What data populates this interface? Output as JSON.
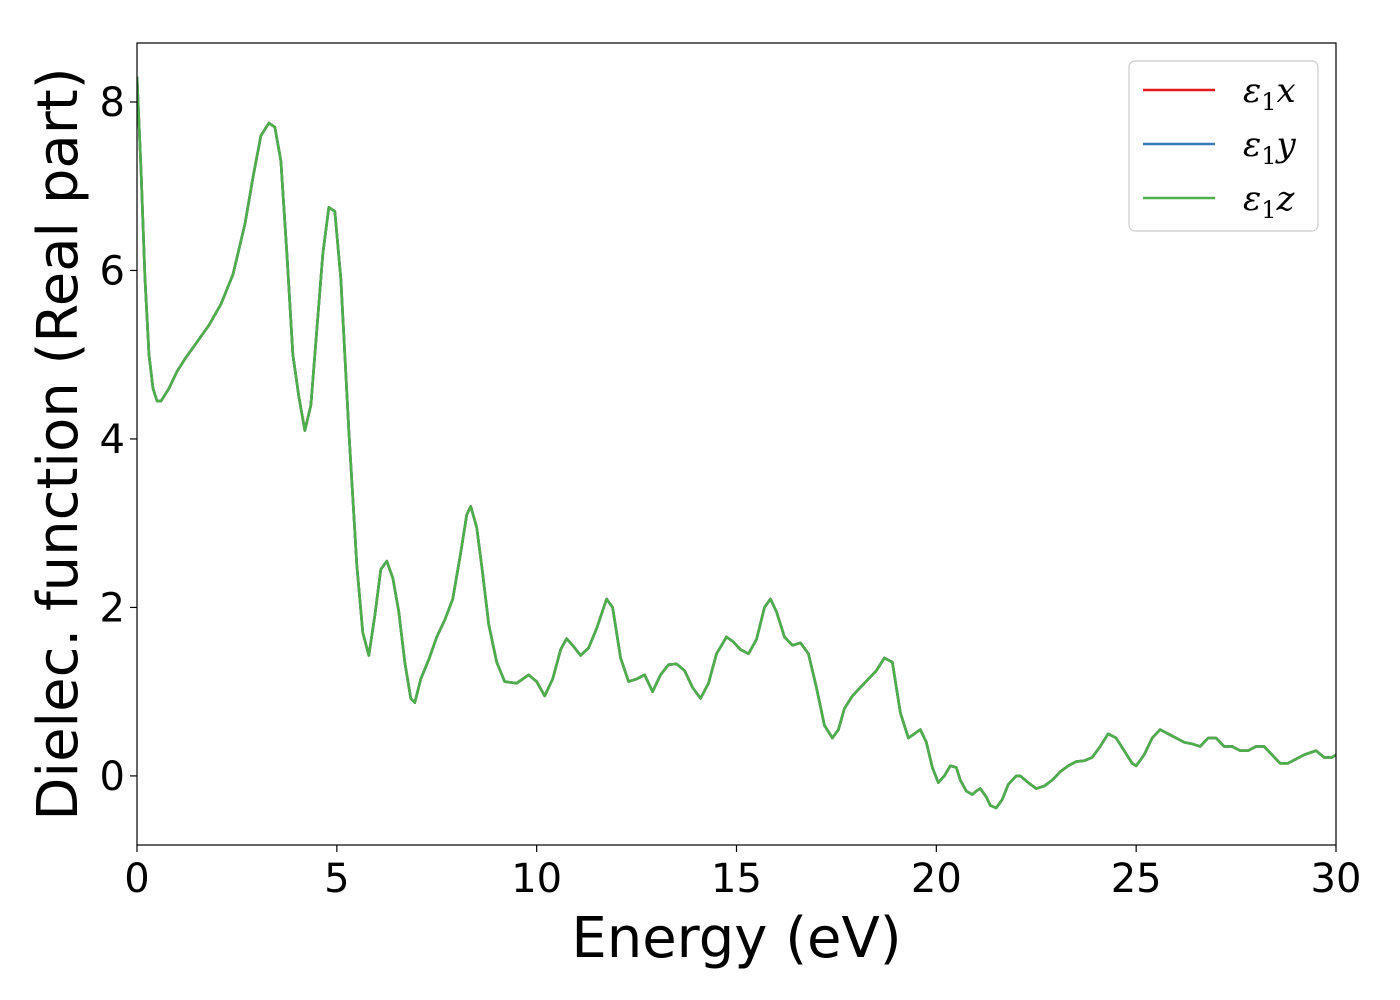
{
  "chart_data": {
    "type": "line",
    "title": "",
    "xlabel": "Energy (eV)",
    "ylabel": "Dielec. function (Real part)",
    "xlim": [
      0,
      30
    ],
    "ylim": [
      -0.82,
      8.7
    ],
    "xticks": [
      0,
      5,
      10,
      15,
      20,
      25,
      30
    ],
    "yticks": [
      0,
      2,
      4,
      6,
      8
    ],
    "legend_position": "top-right",
    "grid": false,
    "series": [
      {
        "name": "ε₁x",
        "legend_base": "ε",
        "legend_sub": "1",
        "legend_var": "x",
        "color": "#e41a1c",
        "x": [
          0,
          0.1,
          0.2,
          0.3,
          0.4,
          0.5,
          0.6,
          0.8,
          1.0,
          1.2,
          1.5,
          1.8,
          2.1,
          2.4,
          2.7,
          2.9,
          3.1,
          3.3,
          3.45,
          3.6,
          3.75,
          3.9,
          4.05,
          4.2,
          4.35,
          4.5,
          4.65,
          4.8,
          4.95,
          5.1,
          5.3,
          5.5,
          5.65,
          5.8,
          5.95,
          6.1,
          6.25,
          6.4,
          6.55,
          6.7,
          6.85,
          6.95,
          7.1,
          7.3,
          7.5,
          7.7,
          7.9,
          8.1,
          8.25,
          8.35,
          8.5,
          8.65,
          8.8,
          9.0,
          9.2,
          9.5,
          9.8,
          10.0,
          10.2,
          10.4,
          10.6,
          10.75,
          10.9,
          11.1,
          11.3,
          11.5,
          11.75,
          11.9,
          12.1,
          12.3,
          12.5,
          12.7,
          12.9,
          13.1,
          13.3,
          13.5,
          13.7,
          13.9,
          14.1,
          14.3,
          14.5,
          14.75,
          14.9,
          15.1,
          15.3,
          15.5,
          15.7,
          15.85,
          16.0,
          16.2,
          16.4,
          16.6,
          16.8,
          17.0,
          17.2,
          17.4,
          17.55,
          17.7,
          17.9,
          18.1,
          18.3,
          18.5,
          18.7,
          18.9,
          19.1,
          19.3,
          19.45,
          19.6,
          19.75,
          19.9,
          20.05,
          20.2,
          20.35,
          20.5,
          20.6,
          20.75,
          20.9,
          21.0,
          21.1,
          21.25,
          21.35,
          21.5,
          21.65,
          21.8,
          22.0,
          22.1,
          22.3,
          22.5,
          22.7,
          22.9,
          23.1,
          23.3,
          23.5,
          23.7,
          23.9,
          24.1,
          24.3,
          24.5,
          24.7,
          24.9,
          25.0,
          25.2,
          25.4,
          25.6,
          25.8,
          26.0,
          26.2,
          26.4,
          26.6,
          26.8,
          27.0,
          27.2,
          27.4,
          27.6,
          27.8,
          28.0,
          28.2,
          28.4,
          28.6,
          28.8,
          29.0,
          29.2,
          29.5,
          29.7,
          29.9,
          30.0
        ],
        "y": [
          8.3,
          7.2,
          5.9,
          5.0,
          4.6,
          4.45,
          4.45,
          4.6,
          4.8,
          4.95,
          5.15,
          5.35,
          5.6,
          5.95,
          6.55,
          7.1,
          7.6,
          7.75,
          7.7,
          7.3,
          6.2,
          5.0,
          4.5,
          4.1,
          4.4,
          5.3,
          6.2,
          6.75,
          6.7,
          5.9,
          4.1,
          2.5,
          1.7,
          1.43,
          1.9,
          2.45,
          2.55,
          2.35,
          1.95,
          1.35,
          0.92,
          0.87,
          1.15,
          1.38,
          1.65,
          1.85,
          2.1,
          2.65,
          3.1,
          3.2,
          2.95,
          2.4,
          1.8,
          1.35,
          1.12,
          1.1,
          1.2,
          1.12,
          0.95,
          1.15,
          1.5,
          1.63,
          1.55,
          1.43,
          1.52,
          1.75,
          2.1,
          2.0,
          1.4,
          1.12,
          1.15,
          1.2,
          1.0,
          1.2,
          1.32,
          1.33,
          1.25,
          1.05,
          0.92,
          1.1,
          1.45,
          1.65,
          1.6,
          1.5,
          1.45,
          1.62,
          2.0,
          2.1,
          1.95,
          1.65,
          1.55,
          1.58,
          1.45,
          1.05,
          0.6,
          0.45,
          0.55,
          0.8,
          0.95,
          1.05,
          1.15,
          1.25,
          1.4,
          1.35,
          0.75,
          0.45,
          0.5,
          0.55,
          0.4,
          0.1,
          -0.08,
          0.0,
          0.12,
          0.1,
          -0.05,
          -0.18,
          -0.22,
          -0.18,
          -0.15,
          -0.25,
          -0.35,
          -0.38,
          -0.28,
          -0.1,
          0.0,
          0.0,
          -0.08,
          -0.15,
          -0.12,
          -0.05,
          0.05,
          0.12,
          0.17,
          0.18,
          0.22,
          0.35,
          0.5,
          0.45,
          0.3,
          0.15,
          0.12,
          0.25,
          0.45,
          0.55,
          0.5,
          0.45,
          0.4,
          0.38,
          0.35,
          0.45,
          0.45,
          0.35,
          0.35,
          0.3,
          0.3,
          0.35,
          0.35,
          0.25,
          0.15,
          0.15,
          0.2,
          0.25,
          0.3,
          0.22,
          0.22,
          0.25
        ]
      },
      {
        "name": "ε₁y",
        "legend_base": "ε",
        "legend_sub": "1",
        "legend_var": "y",
        "color": "#377eb8",
        "same_as_series": 0
      },
      {
        "name": "ε₁z",
        "legend_base": "ε",
        "legend_sub": "1",
        "legend_var": "z",
        "color": "#4daf4a",
        "same_as_series": 0
      }
    ]
  }
}
